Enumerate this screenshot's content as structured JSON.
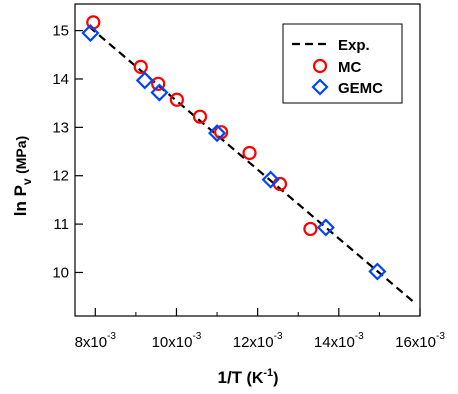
{
  "chart_data": {
    "type": "scatter",
    "title": "",
    "xlabel": "1/T",
    "xlabel_unit": "(K",
    "xlabel_unit_exp": "-1",
    "xlabel_unit_close": ")",
    "ylabel": "ln P",
    "ylabel_sub": "v",
    "ylabel_unit": "(MPa)",
    "xlim": [
      0.0075,
      0.016
    ],
    "ylim": [
      9.1,
      15.55
    ],
    "grid": false,
    "legend_position": "top-right",
    "x_ticks": [
      {
        "value": 0.008,
        "mantissa": "8x10",
        "exp": "-3"
      },
      {
        "value": 0.01,
        "mantissa": "10x10",
        "exp": "-3"
      },
      {
        "value": 0.012,
        "mantissa": "12x10",
        "exp": "-3"
      },
      {
        "value": 0.014,
        "mantissa": "14x10",
        "exp": "-3"
      },
      {
        "value": 0.016,
        "mantissa": "16x10",
        "exp": "-3"
      }
    ],
    "y_ticks": [
      {
        "value": 10,
        "label": "10"
      },
      {
        "value": 11,
        "label": "11"
      },
      {
        "value": 12,
        "label": "12"
      },
      {
        "value": 13,
        "label": "13"
      },
      {
        "value": 14,
        "label": "14"
      },
      {
        "value": 15,
        "label": "15"
      }
    ],
    "series": [
      {
        "name": "Exp.",
        "kind": "line",
        "style": "dashed",
        "color": "#000000",
        "x": [
          0.00785,
          0.0159
        ],
        "y": [
          15.08,
          9.35
        ]
      },
      {
        "name": "MC",
        "kind": "marker",
        "marker": "circle",
        "color": "#ff0000",
        "x": [
          0.00795,
          0.00912,
          0.00955,
          0.01001,
          0.01058,
          0.0111,
          0.0118,
          0.01255,
          0.0133
        ],
        "y": [
          15.17,
          14.25,
          13.9,
          13.57,
          13.22,
          12.9,
          12.47,
          11.83,
          10.9
        ]
      },
      {
        "name": "GEMC",
        "kind": "marker",
        "marker": "diamond",
        "color": "#0044ff",
        "x": [
          0.00788,
          0.00922,
          0.00958,
          0.011,
          0.01232,
          0.01368,
          0.01495
        ],
        "y": [
          14.95,
          13.97,
          13.72,
          12.88,
          11.92,
          10.93,
          10.02
        ]
      }
    ]
  }
}
